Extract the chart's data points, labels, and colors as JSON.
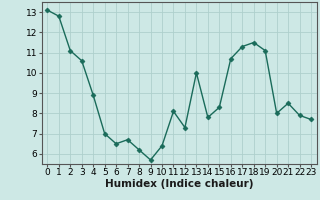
{
  "x": [
    0,
    1,
    2,
    3,
    4,
    5,
    6,
    7,
    8,
    9,
    10,
    11,
    12,
    13,
    14,
    15,
    16,
    17,
    18,
    19,
    20,
    21,
    22,
    23
  ],
  "y": [
    13.1,
    12.8,
    11.1,
    10.6,
    8.9,
    7.0,
    6.5,
    6.7,
    6.2,
    5.7,
    6.4,
    8.1,
    7.3,
    10.0,
    7.8,
    8.3,
    10.7,
    11.3,
    11.5,
    11.1,
    8.0,
    8.5,
    7.9,
    7.7
  ],
  "line_color": "#1a6b5a",
  "marker": "D",
  "marker_size": 2.5,
  "bg_color": "#cde8e5",
  "grid_color": "#aed0cc",
  "xlabel": "Humidex (Indice chaleur)",
  "xlim": [
    -0.5,
    23.5
  ],
  "ylim": [
    5.5,
    13.5
  ],
  "yticks": [
    6,
    7,
    8,
    9,
    10,
    11,
    12,
    13
  ],
  "xticks": [
    0,
    1,
    2,
    3,
    4,
    5,
    6,
    7,
    8,
    9,
    10,
    11,
    12,
    13,
    14,
    15,
    16,
    17,
    18,
    19,
    20,
    21,
    22,
    23
  ],
  "label_fontsize": 7.5,
  "tick_fontsize": 6.5
}
